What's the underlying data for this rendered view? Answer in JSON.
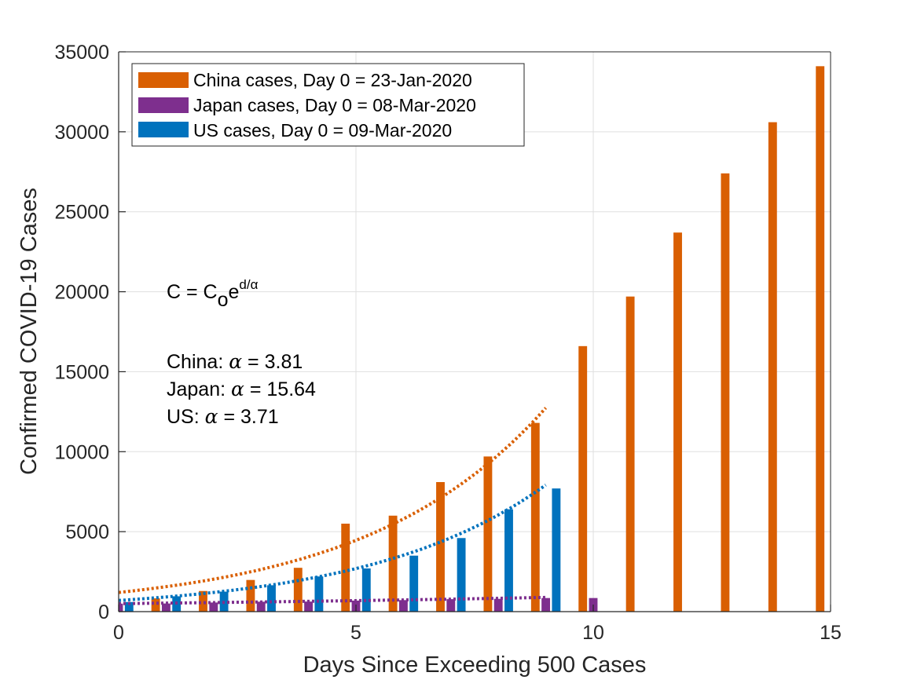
{
  "chart_data": {
    "type": "bar",
    "xlabel": "Days Since Exceeding 500 Cases",
    "ylabel": "Confirmed COVID-19 Cases",
    "xlim": [
      0,
      15
    ],
    "ylim": [
      0,
      35000
    ],
    "xticks": [
      0,
      5,
      10,
      15
    ],
    "yticks": [
      0,
      5000,
      10000,
      15000,
      20000,
      25000,
      30000,
      35000
    ],
    "grid": true,
    "legend_position": "top-left",
    "series": [
      {
        "name": "China cases, Day 0 = 23-Jan-2020",
        "color": "#d95f02",
        "x": [
          0,
          1,
          2,
          3,
          4,
          5,
          6,
          7,
          8,
          9,
          10,
          11,
          12,
          13,
          14,
          15
        ],
        "values": [
          570,
          830,
          1290,
          1980,
          2740,
          5500,
          6000,
          8100,
          9700,
          11800,
          16600,
          19700,
          23700,
          27400,
          30600,
          34100
        ]
      },
      {
        "name": "Japan cases, Day 0 = 08-Mar-2020",
        "color": "#7e2f8e",
        "x": [
          0,
          1,
          2,
          3,
          4,
          5,
          6,
          7,
          8,
          9,
          10
        ],
        "values": [
          500,
          510,
          570,
          620,
          630,
          690,
          720,
          780,
          800,
          850,
          850
        ]
      },
      {
        "name": "US cases, Day 0 = 09-Mar-2020",
        "color": "#0072bd",
        "x": [
          0,
          1,
          2,
          3,
          4,
          5,
          6,
          7,
          8,
          9
        ],
        "values": [
          600,
          960,
          1250,
          1650,
          2200,
          2700,
          3500,
          4600,
          6400,
          7700
        ]
      }
    ],
    "fits": [
      {
        "series": "China",
        "color": "#d95f02",
        "c0": 1200,
        "alpha": 3.81,
        "x_range": [
          0,
          9
        ]
      },
      {
        "series": "Japan",
        "color": "#7e2f8e",
        "c0": 500,
        "alpha": 15.64,
        "x_range": [
          0,
          9
        ]
      },
      {
        "series": "US",
        "color": "#0072bd",
        "c0": 700,
        "alpha": 3.71,
        "x_range": [
          0,
          9
        ]
      }
    ],
    "annotations": {
      "formula": {
        "lhs": "C = C",
        "sub": "o",
        "base": "e",
        "exponent": "d/α"
      },
      "lines": [
        {
          "label": "China: ",
          "symbol": "α",
          "value": " = 3.81"
        },
        {
          "label": "Japan: ",
          "symbol": "α",
          "value": " = 15.64"
        },
        {
          "label": "US: ",
          "symbol": "α",
          "value": " = 3.71"
        }
      ]
    }
  }
}
